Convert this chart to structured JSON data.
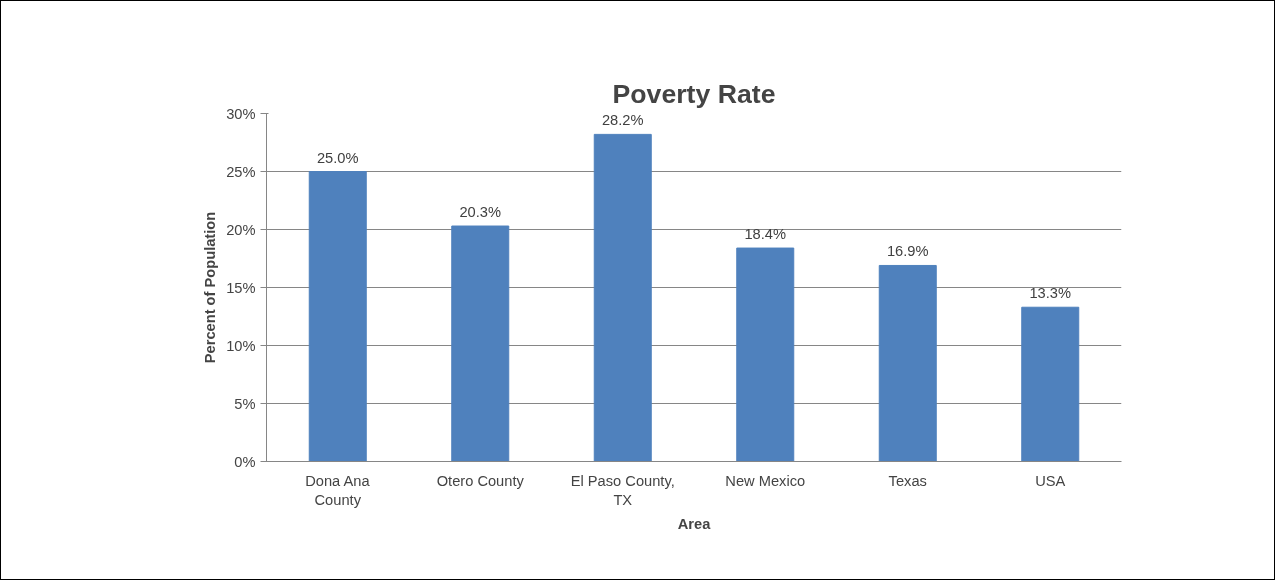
{
  "chart_data": {
    "type": "bar",
    "title": "Poverty Rate",
    "xlabel": "Area",
    "ylabel": "Percent of Population",
    "categories": [
      "Dona Ana\nCounty",
      "Otero County",
      "El Paso County,\nTX",
      "New Mexico",
      "Texas",
      "USA"
    ],
    "values": [
      25.0,
      20.3,
      28.2,
      18.4,
      16.9,
      13.3
    ],
    "value_labels": [
      "25.0%",
      "20.3%",
      "28.2%",
      "18.4%",
      "16.9%",
      "13.3%"
    ],
    "color": "#4f81bd",
    "ylim": [
      0,
      30
    ],
    "yticks": [
      {
        "value": 0,
        "label": "0%"
      },
      {
        "value": 5,
        "label": "5%"
      },
      {
        "value": 10,
        "label": "10%"
      },
      {
        "value": 15,
        "label": "15%"
      },
      {
        "value": 20,
        "label": "20%"
      },
      {
        "value": 25,
        "label": "25%"
      },
      {
        "value": 30,
        "label": "30%"
      }
    ],
    "grid": "y"
  }
}
